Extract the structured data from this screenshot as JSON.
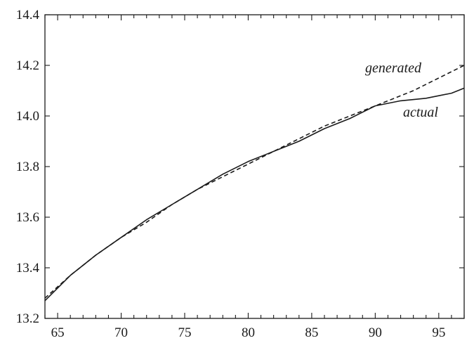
{
  "chart_data": {
    "type": "line",
    "title": "",
    "xlabel": "",
    "ylabel": "",
    "xlim": [
      64,
      97
    ],
    "ylim": [
      13.2,
      14.4
    ],
    "x_ticks": [
      65,
      70,
      75,
      80,
      85,
      90,
      95
    ],
    "y_ticks": [
      13.2,
      13.4,
      13.6,
      13.8,
      14.0,
      14.2,
      14.4
    ],
    "x_tick_labels": [
      "65",
      "70",
      "75",
      "80",
      "85",
      "90",
      "95"
    ],
    "y_tick_labels": [
      "13.2",
      "13.4",
      "13.6",
      "13.8",
      "14.0",
      "14.2",
      "14.4"
    ],
    "grid": false,
    "series": [
      {
        "name": "actual",
        "style": "solid",
        "color": "#1a1a1a",
        "x": [
          64,
          66,
          68,
          70,
          72,
          74,
          76,
          78,
          80,
          82,
          84,
          86,
          88,
          90,
          91,
          92,
          94,
          95,
          96,
          97
        ],
        "y": [
          13.27,
          13.37,
          13.45,
          13.52,
          13.59,
          13.65,
          13.71,
          13.77,
          13.82,
          13.86,
          13.9,
          13.95,
          13.99,
          14.04,
          14.05,
          14.06,
          14.07,
          14.08,
          14.09,
          14.11
        ]
      },
      {
        "name": "generated",
        "style": "dashed",
        "color": "#1a1a1a",
        "x": [
          64,
          66,
          68,
          70,
          72,
          74,
          76,
          78,
          80,
          82,
          84,
          86,
          88,
          90,
          91,
          93,
          95,
          97
        ],
        "y": [
          13.28,
          13.37,
          13.45,
          13.52,
          13.58,
          13.65,
          13.71,
          13.76,
          13.81,
          13.86,
          13.91,
          13.96,
          14.0,
          14.04,
          14.06,
          14.1,
          14.15,
          14.2
        ]
      }
    ],
    "annotations": [
      {
        "text": "generated",
        "series": "generated"
      },
      {
        "text": "actual",
        "series": "actual"
      }
    ]
  }
}
